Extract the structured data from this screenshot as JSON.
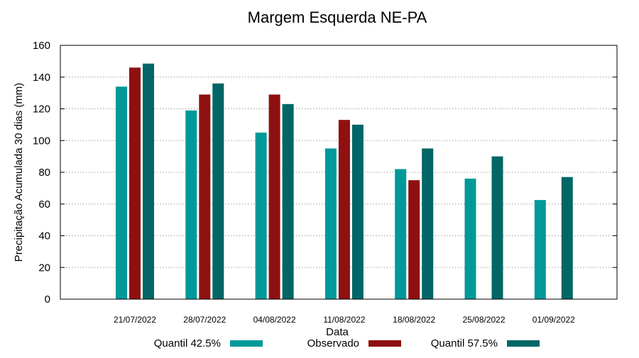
{
  "chart_data": {
    "type": "bar",
    "title": "Margem Esquerda NE-PA",
    "xlabel": "Data",
    "ylabel": "Precipitação Acumulada 30 dias (mm)",
    "ylim": [
      0,
      160
    ],
    "yticks": [
      0,
      20,
      40,
      60,
      80,
      100,
      120,
      140,
      160
    ],
    "grid": "horizontal-dotted",
    "legend_position": "bottom",
    "categories": [
      "21/07/2022",
      "28/07/2022",
      "04/08/2022",
      "11/08/2022",
      "18/08/2022",
      "25/08/2022",
      "01/09/2022"
    ],
    "series": [
      {
        "name": "Quantil 42.5%",
        "color": "#009999",
        "values": [
          134,
          119,
          105,
          95,
          82,
          76,
          62.5
        ]
      },
      {
        "name": "Observado",
        "color": "#8f1010",
        "values": [
          146,
          129,
          129,
          113,
          75,
          null,
          null
        ]
      },
      {
        "name": "Quantil 57.5%",
        "color": "#006666",
        "values": [
          148.5,
          136,
          123,
          110,
          95,
          90,
          77
        ]
      }
    ]
  }
}
